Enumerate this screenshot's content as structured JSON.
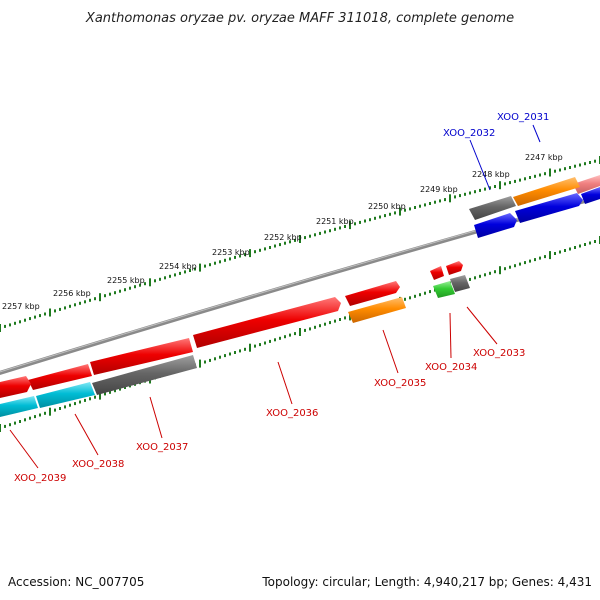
{
  "title": "Xanthomonas oryzae pv. oryzae MAFF 311018, complete genome",
  "footer": {
    "accession": "Accession: NC_007705",
    "topology": "Topology: circular; Length: 4,940,217 bp; Genes: 4,431"
  },
  "kbp_labels": [
    "2247 kbp",
    "2248 kbp",
    "2249 kbp",
    "2250 kbp",
    "2251 kbp",
    "2252 kbp",
    "2253 kbp",
    "2254 kbp",
    "2255 kbp",
    "2256 kbp",
    "2257 kbp"
  ],
  "genes": [
    {
      "name": "XOO_2031",
      "color": "#0000cc"
    },
    {
      "name": "XOO_2032",
      "color": "#0000cc"
    },
    {
      "name": "XOO_2033",
      "color": "#cc0000"
    },
    {
      "name": "XOO_2034",
      "color": "#cc0000"
    },
    {
      "name": "XOO_2035",
      "color": "#cc0000"
    },
    {
      "name": "XOO_2036",
      "color": "#cc0000"
    },
    {
      "name": "XOO_2037",
      "color": "#cc0000"
    },
    {
      "name": "XOO_2038",
      "color": "#cc0000"
    },
    {
      "name": "XOO_2039",
      "color": "#cc0000"
    }
  ],
  "colors": {
    "backbone": "#8a8a8a",
    "tick_track": "#1f7a1f",
    "red": "#ee0000",
    "blue": "#0000dd",
    "orange": "#ff8c00",
    "gray": "#666666",
    "cyan": "#00bcd4",
    "green": "#33cc33",
    "pink": "#f08080"
  }
}
